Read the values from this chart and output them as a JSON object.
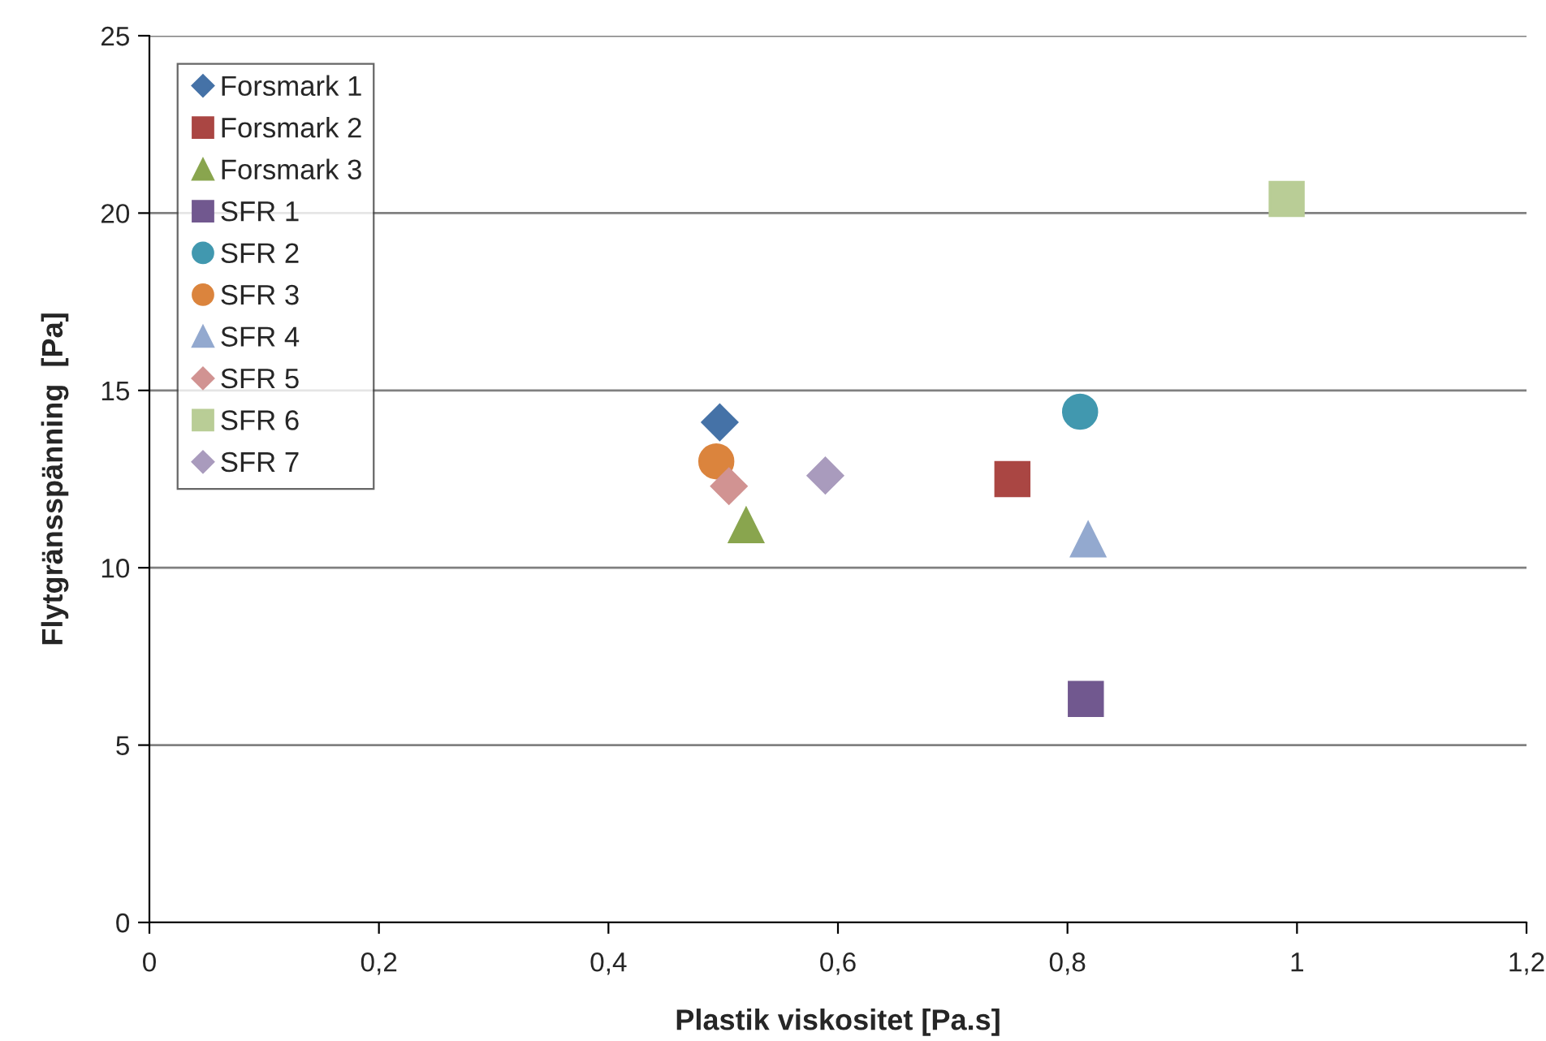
{
  "chart_data": {
    "type": "scatter",
    "xlabel": "Plastik viskositet [Pa.s]",
    "ylabel": "Flytgränsspänning  [Pa]",
    "xlim": [
      0,
      1.2
    ],
    "ylim": [
      0,
      25
    ],
    "xticks": [
      0,
      {
        "value": 0.2,
        "label": "0,2"
      },
      {
        "value": 0.4,
        "label": "0,4"
      },
      {
        "value": 0.6,
        "label": "0,6"
      },
      {
        "value": 0.8,
        "label": "0,8"
      },
      1,
      {
        "value": 1.2,
        "label": "1,2"
      }
    ],
    "yticks": [
      0,
      5,
      10,
      15,
      20,
      25
    ],
    "grid": "y",
    "legend": "top left",
    "series": [
      {
        "name": "Forsmark 1",
        "color": "#4572a7",
        "marker": "diamond",
        "x": [
          0.497
        ],
        "values": [
          14.1
        ]
      },
      {
        "name": "Forsmark 2",
        "color": "#aa4643",
        "marker": "square",
        "x": [
          0.752
        ],
        "values": [
          12.5
        ]
      },
      {
        "name": "Forsmark 3",
        "color": "#89a54e",
        "marker": "triangle",
        "x": [
          0.52
        ],
        "values": [
          11.2
        ]
      },
      {
        "name": "SFR 1",
        "color": "#71588f",
        "marker": "square",
        "x": [
          0.816
        ],
        "values": [
          6.3
        ]
      },
      {
        "name": "SFR 2",
        "color": "#4198af",
        "marker": "circle",
        "x": [
          0.811
        ],
        "values": [
          14.4
        ]
      },
      {
        "name": "SFR 3",
        "color": "#db843d",
        "marker": "circle",
        "x": [
          0.494
        ],
        "values": [
          13.0
        ]
      },
      {
        "name": "SFR 4",
        "color": "#93a9cf",
        "marker": "triangle",
        "x": [
          0.818
        ],
        "values": [
          10.8
        ]
      },
      {
        "name": "SFR 5",
        "color": "#d19392",
        "marker": "diamond",
        "x": [
          0.505
        ],
        "values": [
          12.3
        ]
      },
      {
        "name": "SFR 6",
        "color": "#b9cd96",
        "marker": "square",
        "x": [
          0.991
        ],
        "values": [
          20.4
        ]
      },
      {
        "name": "SFR 7",
        "color": "#a99bbd",
        "marker": "diamond",
        "x": [
          0.589
        ],
        "values": [
          12.6
        ]
      }
    ]
  }
}
